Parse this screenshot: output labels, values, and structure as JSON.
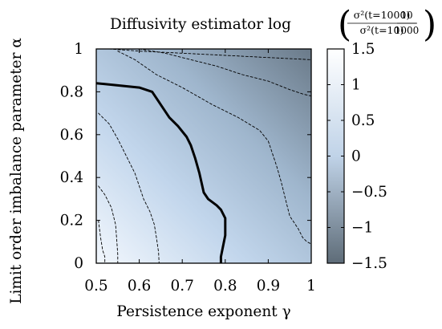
{
  "chart_data": {
    "type": "heatmap",
    "title": {
      "prefix": "Diffusivity estimator log",
      "num": "σ²(t=1000)",
      "den": "σ²(t=10)",
      "factor_num": "10",
      "factor_den": "1000"
    },
    "xlabel": "Persistence exponent γ",
    "ylabel": "Limit order imbalance parameter α",
    "xlim": [
      0.5,
      1.0
    ],
    "ylim": [
      0.0,
      1.0
    ],
    "x_ticks": [
      0.5,
      0.6,
      0.7,
      0.8,
      0.9,
      1.0
    ],
    "x_tick_labels": [
      "0.5",
      "0.6",
      "0.7",
      "0.8",
      "0.9",
      "1"
    ],
    "y_ticks": [
      0,
      0.2,
      0.4,
      0.6,
      0.8,
      1.0
    ],
    "y_tick_labels": [
      "0",
      "0.2",
      "0.4",
      "0.6",
      "0.8",
      "1"
    ],
    "colorbar": {
      "range": [
        -1.5,
        1.5
      ],
      "ticks": [
        1.5,
        1,
        0.5,
        0,
        -0.5,
        -1,
        -1.5
      ],
      "tick_labels": [
        "1.5",
        "1",
        "0.5",
        "0",
        "−0.5",
        "−1",
        "−1.5"
      ],
      "colors": {
        "high": "#ffffff",
        "mid": "#c0d3e8",
        "low": "#5e6c78"
      }
    },
    "contours": [
      {
        "level": 0,
        "style": "solid-thick",
        "points": [
          [
            0.5,
            0.84
          ],
          [
            0.55,
            0.83
          ],
          [
            0.6,
            0.82
          ],
          [
            0.63,
            0.8
          ],
          [
            0.65,
            0.74
          ],
          [
            0.67,
            0.68
          ],
          [
            0.69,
            0.64
          ],
          [
            0.71,
            0.59
          ],
          [
            0.72,
            0.55
          ],
          [
            0.73,
            0.49
          ],
          [
            0.74,
            0.42
          ],
          [
            0.75,
            0.33
          ],
          [
            0.76,
            0.3
          ],
          [
            0.78,
            0.27
          ],
          [
            0.79,
            0.25
          ],
          [
            0.8,
            0.21
          ],
          [
            0.8,
            0.13
          ],
          [
            0.79,
            0.03
          ],
          [
            0.79,
            0.0
          ]
        ]
      },
      {
        "style": "dashed",
        "points": [
          [
            0.505,
            0.2
          ],
          [
            0.51,
            0.12
          ],
          [
            0.515,
            0.06
          ],
          [
            0.52,
            0.03
          ],
          [
            0.52,
            0.0
          ]
        ]
      },
      {
        "style": "dashed",
        "points": [
          [
            0.505,
            0.36
          ],
          [
            0.52,
            0.32
          ],
          [
            0.535,
            0.26
          ],
          [
            0.545,
            0.18
          ],
          [
            0.548,
            0.1
          ],
          [
            0.55,
            0.04
          ],
          [
            0.55,
            0.0
          ]
        ]
      },
      {
        "style": "dashed",
        "points": [
          [
            0.505,
            0.7
          ],
          [
            0.53,
            0.65
          ],
          [
            0.55,
            0.58
          ],
          [
            0.57,
            0.5
          ],
          [
            0.59,
            0.42
          ],
          [
            0.6,
            0.36
          ],
          [
            0.61,
            0.3
          ],
          [
            0.625,
            0.24
          ],
          [
            0.635,
            0.18
          ],
          [
            0.64,
            0.12
          ],
          [
            0.645,
            0.05
          ],
          [
            0.646,
            0.0
          ]
        ]
      },
      {
        "style": "dashed",
        "points": [
          [
            0.55,
            0.99
          ],
          [
            0.59,
            0.95
          ],
          [
            0.64,
            0.88
          ],
          [
            0.7,
            0.82
          ],
          [
            0.77,
            0.74
          ],
          [
            0.83,
            0.68
          ],
          [
            0.88,
            0.62
          ],
          [
            0.9,
            0.57
          ],
          [
            0.91,
            0.51
          ],
          [
            0.92,
            0.45
          ],
          [
            0.93,
            0.38
          ],
          [
            0.94,
            0.3
          ],
          [
            0.95,
            0.22
          ],
          [
            0.96,
            0.19
          ],
          [
            0.97,
            0.16
          ],
          [
            0.98,
            0.12
          ],
          [
            0.99,
            0.1
          ],
          [
            1.0,
            0.09
          ]
        ]
      },
      {
        "style": "dashed",
        "points": [
          [
            0.6,
            1.0
          ],
          [
            0.66,
            0.98
          ],
          [
            0.72,
            0.95
          ],
          [
            0.78,
            0.92
          ],
          [
            0.84,
            0.88
          ],
          [
            0.9,
            0.85
          ],
          [
            0.95,
            0.81
          ],
          [
            0.98,
            0.79
          ],
          [
            1.0,
            0.78
          ]
        ]
      },
      {
        "style": "dashed",
        "points": [
          [
            0.53,
            1.0
          ],
          [
            0.6,
            0.99
          ],
          [
            0.7,
            0.98
          ],
          [
            0.8,
            0.97
          ],
          [
            0.9,
            0.96
          ],
          [
            1.0,
            0.95
          ]
        ]
      }
    ]
  }
}
